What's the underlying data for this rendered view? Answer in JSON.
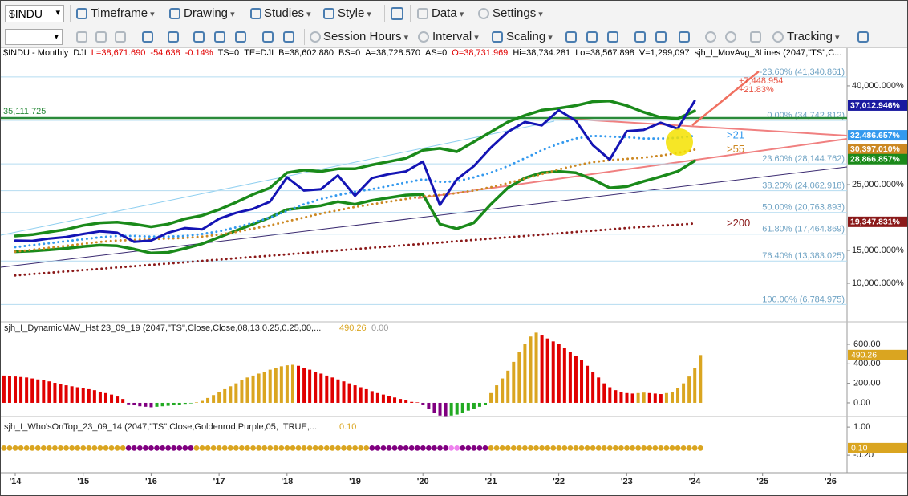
{
  "toolbar1": {
    "symbol": "$INDU",
    "items": [
      "Timeframe",
      "Drawing",
      "Studies",
      "Style",
      "Data",
      "Settings"
    ]
  },
  "toolbar2": {
    "items": [
      "Session Hours",
      "Interval",
      "Scaling",
      "Tracking"
    ]
  },
  "header": {
    "items": [
      {
        "text": "$INDU - Monthly",
        "color": "#000"
      },
      {
        "text": "DJI",
        "color": "#000"
      },
      {
        "text": "L=38,671.690",
        "color": "#e00000"
      },
      {
        "text": "-54.638",
        "color": "#e00000"
      },
      {
        "text": "-0.14%",
        "color": "#e00000"
      },
      {
        "text": "TS=0",
        "color": "#000"
      },
      {
        "text": "TE=DJI",
        "color": "#000"
      },
      {
        "text": "B=38,602.880",
        "color": "#000"
      },
      {
        "text": "BS=0",
        "color": "#000"
      },
      {
        "text": "A=38,728.570",
        "color": "#000"
      },
      {
        "text": "AS=0",
        "color": "#000"
      },
      {
        "text": "O=38,731.969",
        "color": "#e00000"
      },
      {
        "text": "Hi=38,734.281",
        "color": "#000"
      },
      {
        "text": "Lo=38,567.898",
        "color": "#000"
      },
      {
        "text": "V=1,299,097",
        "color": "#000"
      },
      {
        "text": "sjh_I_MovAvg_3Lines (2047,\"TS\",C...",
        "color": "#000"
      }
    ]
  },
  "main_chart": {
    "ylim": [
      4150,
      45600
    ],
    "yticks": [
      {
        "value": 40000,
        "label": "40,000.000%"
      },
      {
        "value": 25000,
        "label": "25,000.000%"
      },
      {
        "value": 15000,
        "label": "15,000.000%"
      },
      {
        "value": 10000,
        "label": "10,000.000%"
      }
    ],
    "fib_color": "#b4dcf0",
    "fib_label_color": "#6fa3c4",
    "fib_levels": [
      {
        "value": 41340.861,
        "label": "-23.60% (41,340.861)"
      },
      {
        "value": 34742.812,
        "label": "0.00% (34,742.812)"
      },
      {
        "value": 28144.762,
        "label": "23.60% (28,144.762)"
      },
      {
        "value": 24062.918,
        "label": "38.20% (24,062.918)"
      },
      {
        "value": 20763.893,
        "label": "50.00% (20,763.893)"
      },
      {
        "value": 17464.869,
        "label": "61.80% (17,464.869)"
      },
      {
        "value": 13383.025,
        "label": "76.40% (13,383.025)"
      },
      {
        "value": 6784.975,
        "label": "100.00% (6,784.975)"
      }
    ],
    "level_line": {
      "value": 35111.725,
      "label": "35,111.725",
      "color": "#2a8a3a"
    },
    "series": [
      {
        "color": "#1a8a1a",
        "width": 3.5,
        "dotted": false,
        "values": [
          17200,
          17400,
          17800,
          18200,
          18800,
          19200,
          19300,
          19000,
          18600,
          19000,
          19800,
          20300,
          21200,
          22300,
          23500,
          24500,
          26800,
          27200,
          27000,
          27400,
          27400,
          28000,
          28500,
          29000,
          30200,
          30500,
          30000,
          31500,
          33000,
          34500,
          35500,
          36300,
          36600,
          37000,
          37600,
          37700,
          37000,
          36000,
          35200,
          35000,
          36200
        ]
      },
      {
        "color": "#1a8a1a",
        "width": 3.5,
        "dotted": false,
        "values": [
          14800,
          14900,
          15100,
          15300,
          15600,
          15800,
          15700,
          15200,
          14600,
          14700,
          15300,
          16000,
          17000,
          18000,
          19000,
          20000,
          21200,
          21500,
          21800,
          22400,
          22000,
          22600,
          23000,
          23400,
          23500,
          19000,
          18300,
          19200,
          22000,
          24500,
          26000,
          26800,
          27000,
          26800,
          25800,
          24500,
          24700,
          25500,
          26200,
          27000,
          28600
        ]
      },
      {
        "color": "#8b1a1a",
        "width": 3,
        "dotted": true,
        "label": ">200",
        "label_color": "#8b1a1a",
        "values": [
          11200,
          11400,
          11600,
          11800,
          12000,
          12200,
          12400,
          12600,
          12800,
          13000,
          13200,
          13400,
          13600,
          13800,
          14000,
          14200,
          14400,
          14600,
          14800,
          15000,
          15200,
          15400,
          15600,
          15800,
          16000,
          16200,
          16400,
          16600,
          16800,
          17000,
          17200,
          17400,
          17600,
          17800,
          18000,
          18200,
          18400,
          18600,
          18750,
          18900,
          19100
        ]
      },
      {
        "color": "#cc8822",
        "width": 3,
        "dotted": true,
        "label": ">55",
        "label_color": "#cc8822",
        "values": [
          14800,
          15100,
          15400,
          15700,
          16000,
          16300,
          16500,
          16600,
          16700,
          16800,
          16900,
          17100,
          17400,
          17800,
          18300,
          18800,
          19400,
          20000,
          20600,
          21100,
          21600,
          22000,
          22400,
          22800,
          23200,
          23400,
          23700,
          24100,
          24600,
          25200,
          25900,
          26600,
          27300,
          27900,
          28400,
          28700,
          28900,
          29100,
          29400,
          29800,
          30300
        ]
      },
      {
        "color": "#3399ee",
        "width": 3,
        "dotted": true,
        "label": ">21",
        "label_color": "#3399ee",
        "values": [
          15500,
          15800,
          16100,
          16400,
          16700,
          17000,
          17200,
          17200,
          17100,
          17100,
          17200,
          17500,
          17900,
          18500,
          19200,
          20000,
          21000,
          22000,
          22800,
          23400,
          23900,
          24300,
          24800,
          25300,
          25800,
          25400,
          25500,
          26100,
          26800,
          27800,
          29000,
          30200,
          31200,
          32000,
          32400,
          32300,
          32200,
          32000,
          32000,
          32100,
          32400
        ]
      },
      {
        "color": "#1414b4",
        "width": 3,
        "dotted": false,
        "values": [
          16500,
          16450,
          16800,
          17050,
          17500,
          17900,
          17700,
          16300,
          16500,
          17700,
          18400,
          18200,
          19800,
          20700,
          21300,
          22400,
          26100,
          24100,
          24300,
          26400,
          23300,
          26000,
          26600,
          27000,
          28500,
          21900,
          25800,
          27800,
          30600,
          33000,
          34500,
          34000,
          36300,
          34700,
          31000,
          28800,
          33100,
          33300,
          34400,
          33500,
          37700
        ]
      }
    ],
    "value_tags": [
      {
        "value": 37012.946,
        "label": "37,012.946%",
        "color": "#1a1aa0"
      },
      {
        "value": 32486.657,
        "label": "32,486.657%",
        "color": "#3399ee"
      },
      {
        "value": 30397.01,
        "label": "30,397.010%",
        "color": "#cc8822"
      },
      {
        "value": 28866.857,
        "label": "28,866.857%",
        "color": "#1a8a1a"
      },
      {
        "value": 19347.831,
        "label": "19,347.831%",
        "color": "#8b1a1a"
      }
    ],
    "annotations": [
      "+7,448.954",
      "+21.83%"
    ]
  },
  "histogram_panel": {
    "title": "sjh_I_DynamicMAV_Hst 23_09_19 (2047,\"TS\",Close,Close,08,13,0.25,0.25,00,...",
    "value1": "490.26",
    "value2": "0.00",
    "ylim": [
      -140,
      830
    ],
    "yticks": [
      {
        "value": 600,
        "label": "600.00"
      },
      {
        "value": 400,
        "label": "400.00"
      },
      {
        "value": 200,
        "label": "200.00"
      },
      {
        "value": 0,
        "label": "0.00"
      }
    ],
    "tag": {
      "value": 490.26,
      "label": "490.26",
      "color": "#daa520"
    },
    "colors": {
      "rising": "#daa520",
      "falling": "#e00000",
      "negative_falling": "#800080",
      "negative_rising": "#22aa22"
    },
    "values": [
      280,
      275,
      270,
      265,
      260,
      250,
      240,
      230,
      220,
      205,
      190,
      180,
      170,
      160,
      150,
      140,
      130,
      115,
      100,
      85,
      65,
      40,
      -15,
      -25,
      -35,
      -40,
      -45,
      -40,
      -35,
      -30,
      -25,
      -20,
      -10,
      -5,
      5,
      20,
      50,
      80,
      110,
      140,
      170,
      200,
      230,
      260,
      280,
      300,
      320,
      340,
      360,
      375,
      385,
      390,
      380,
      360,
      340,
      320,
      300,
      280,
      260,
      240,
      220,
      200,
      180,
      160,
      140,
      120,
      100,
      85,
      70,
      55,
      40,
      25,
      10,
      5,
      -20,
      -60,
      -100,
      -130,
      -135,
      -130,
      -120,
      -100,
      -80,
      -60,
      -40,
      -20,
      100,
      180,
      250,
      330,
      420,
      520,
      600,
      680,
      720,
      690,
      660,
      630,
      600,
      560,
      520,
      480,
      440,
      380,
      320,
      260,
      200,
      160,
      130,
      110,
      100,
      95,
      100,
      105,
      100,
      95,
      90,
      100,
      110,
      150,
      200,
      270,
      360,
      490.26
    ]
  },
  "dots_panel": {
    "title": "sjh_I_Who'sOnTop_23_09_14 (2047,\"TS\",Close,Goldenrod,Purple,05,  TRUE,...",
    "value1": "0.10",
    "ylim": [
      -0.95,
      1.45
    ],
    "yticks": [
      {
        "value": 1,
        "label": "1.00"
      },
      {
        "value": -0.2,
        "label": "-0.20"
      }
    ],
    "tag": {
      "value": 0.1,
      "label": "0.10",
      "color": "#daa520"
    },
    "values": [
      0.1,
      0.1,
      0.1,
      0.1,
      0.1,
      0.1,
      0.1,
      0.1,
      0.1,
      0.1,
      0.1,
      0.1,
      0.1,
      0.1,
      0.1,
      0.1,
      0.1,
      0.1,
      0.1,
      0.1,
      0.1,
      0.1,
      0.1,
      0.1,
      0.1,
      0.1,
      0.1,
      0.1,
      0.1,
      0.1,
      0.1,
      0.1,
      0.1,
      0.1,
      0.1,
      0.1,
      0.1,
      0.1,
      0.1,
      0.1,
      0.1,
      0.1,
      0.1,
      0.1,
      0.1,
      0.1,
      0.1,
      0.1,
      0.1,
      0.1,
      0.1,
      0.1,
      0.1,
      0.1,
      0.1,
      0.1,
      0.1,
      0.1,
      0.1,
      0.1,
      0.1,
      0.1,
      0.1,
      0.1,
      0.1,
      0.1,
      0.1,
      0.1,
      0.1,
      0.1,
      0.1,
      0.1,
      0.1,
      0.1,
      0.1,
      0.1,
      0.1,
      0.1,
      0.1,
      0.1,
      0.1,
      0.1,
      0.1,
      0.1,
      0.1,
      0.1,
      0.1,
      0.1,
      0.1,
      0.1,
      0.1,
      0.1,
      0.1,
      0.1,
      0.1,
      0.1,
      0.1,
      0.1,
      0.1,
      0.1,
      0.1,
      0.1,
      0.1,
      0.1,
      0.1,
      0.1,
      0.1,
      0.1,
      0.1,
      0.1,
      0.1,
      0.1,
      0.1,
      0.1,
      0.1,
      0.1,
      0.1,
      0.1,
      0.1,
      0.1,
      0.1,
      0.1,
      0.1,
      0.1
    ],
    "colors": [
      "goldenrod",
      "goldenrod",
      "goldenrod",
      "goldenrod",
      "goldenrod",
      "goldenrod",
      "goldenrod",
      "goldenrod",
      "goldenrod",
      "goldenrod",
      "goldenrod",
      "goldenrod",
      "goldenrod",
      "goldenrod",
      "goldenrod",
      "goldenrod",
      "goldenrod",
      "goldenrod",
      "goldenrod",
      "goldenrod",
      "goldenrod",
      "goldenrod",
      "purple",
      "purple",
      "purple",
      "purple",
      "purple",
      "purple",
      "purple",
      "purple",
      "purple",
      "purple",
      "purple",
      "purple",
      "goldenrod",
      "goldenrod",
      "goldenrod",
      "goldenrod",
      "goldenrod",
      "goldenrod",
      "goldenrod",
      "goldenrod",
      "goldenrod",
      "goldenrod",
      "goldenrod",
      "goldenrod",
      "goldenrod",
      "goldenrod",
      "goldenrod",
      "goldenrod",
      "goldenrod",
      "goldenrod",
      "goldenrod",
      "goldenrod",
      "goldenrod",
      "goldenrod",
      "goldenrod",
      "goldenrod",
      "goldenrod",
      "goldenrod",
      "goldenrod",
      "goldenrod",
      "goldenrod",
      "goldenrod",
      "goldenrod",
      "purple",
      "purple",
      "purple",
      "purple",
      "purple",
      "purple",
      "purple",
      "purple",
      "purple",
      "purple",
      "purple",
      "purple",
      "purple",
      "purple",
      "violet",
      "violet",
      "purple",
      "purple",
      "purple",
      "purple",
      "purple",
      "goldenrod",
      "goldenrod",
      "goldenrod",
      "goldenrod",
      "goldenrod",
      "goldenrod",
      "goldenrod",
      "goldenrod",
      "goldenrod",
      "goldenrod",
      "goldenrod",
      "goldenrod",
      "goldenrod",
      "goldenrod",
      "goldenrod",
      "goldenrod",
      "goldenrod",
      "goldenrod",
      "goldenrod",
      "goldenrod",
      "goldenrod",
      "goldenrod",
      "goldenrod",
      "goldenrod",
      "goldenrod",
      "goldenrod",
      "goldenrod",
      "goldenrod",
      "goldenrod",
      "goldenrod",
      "goldenrod",
      "goldenrod",
      "goldenrod",
      "goldenrod",
      "goldenrod",
      "goldenrod",
      "goldenrod",
      "goldenrod"
    ]
  },
  "x_axis_labels": [
    "'14",
    "'15",
    "'16",
    "'17",
    "'18",
    "'19",
    "'20",
    "'21",
    "'22",
    "'23",
    "'24",
    "'25",
    "'26"
  ]
}
